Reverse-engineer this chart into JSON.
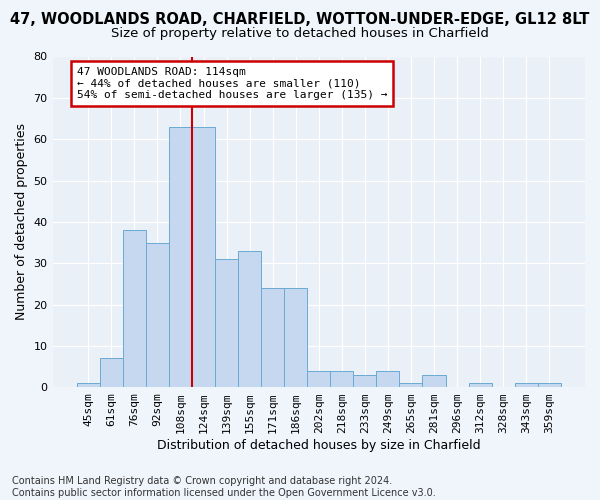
{
  "title": "47, WOODLANDS ROAD, CHARFIELD, WOTTON-UNDER-EDGE, GL12 8LT",
  "subtitle": "Size of property relative to detached houses in Charfield",
  "xlabel": "Distribution of detached houses by size in Charfield",
  "ylabel": "Number of detached properties",
  "categories": [
    "45sqm",
    "61sqm",
    "76sqm",
    "92sqm",
    "108sqm",
    "124sqm",
    "139sqm",
    "155sqm",
    "171sqm",
    "186sqm",
    "202sqm",
    "218sqm",
    "233sqm",
    "249sqm",
    "265sqm",
    "281sqm",
    "296sqm",
    "312sqm",
    "328sqm",
    "343sqm",
    "359sqm"
  ],
  "values": [
    1,
    7,
    38,
    35,
    63,
    63,
    31,
    33,
    24,
    24,
    4,
    4,
    3,
    4,
    1,
    3,
    0,
    1,
    0,
    1,
    1
  ],
  "bar_color": "#c5d8f0",
  "bar_edge_color": "#6aaad4",
  "vline_pos": 4.5,
  "vline_color": "#cc0000",
  "annotation_line1": "47 WOODLANDS ROAD: 114sqm",
  "annotation_line2": "← 44% of detached houses are smaller (110)",
  "annotation_line3": "54% of semi-detached houses are larger (135) →",
  "annotation_box_facecolor": "#ffffff",
  "annotation_box_edgecolor": "#cc0000",
  "ylim_max": 80,
  "yticks": [
    0,
    10,
    20,
    30,
    40,
    50,
    60,
    70,
    80
  ],
  "footer_line1": "Contains HM Land Registry data © Crown copyright and database right 2024.",
  "footer_line2": "Contains public sector information licensed under the Open Government Licence v3.0.",
  "fig_facecolor": "#f0f4fb",
  "plot_facecolor": "#eaf0f8",
  "grid_color": "#ffffff",
  "title_fontsize": 10.5,
  "subtitle_fontsize": 9.5,
  "axis_label_fontsize": 9,
  "tick_fontsize": 8,
  "annotation_fontsize": 8,
  "footer_fontsize": 7
}
